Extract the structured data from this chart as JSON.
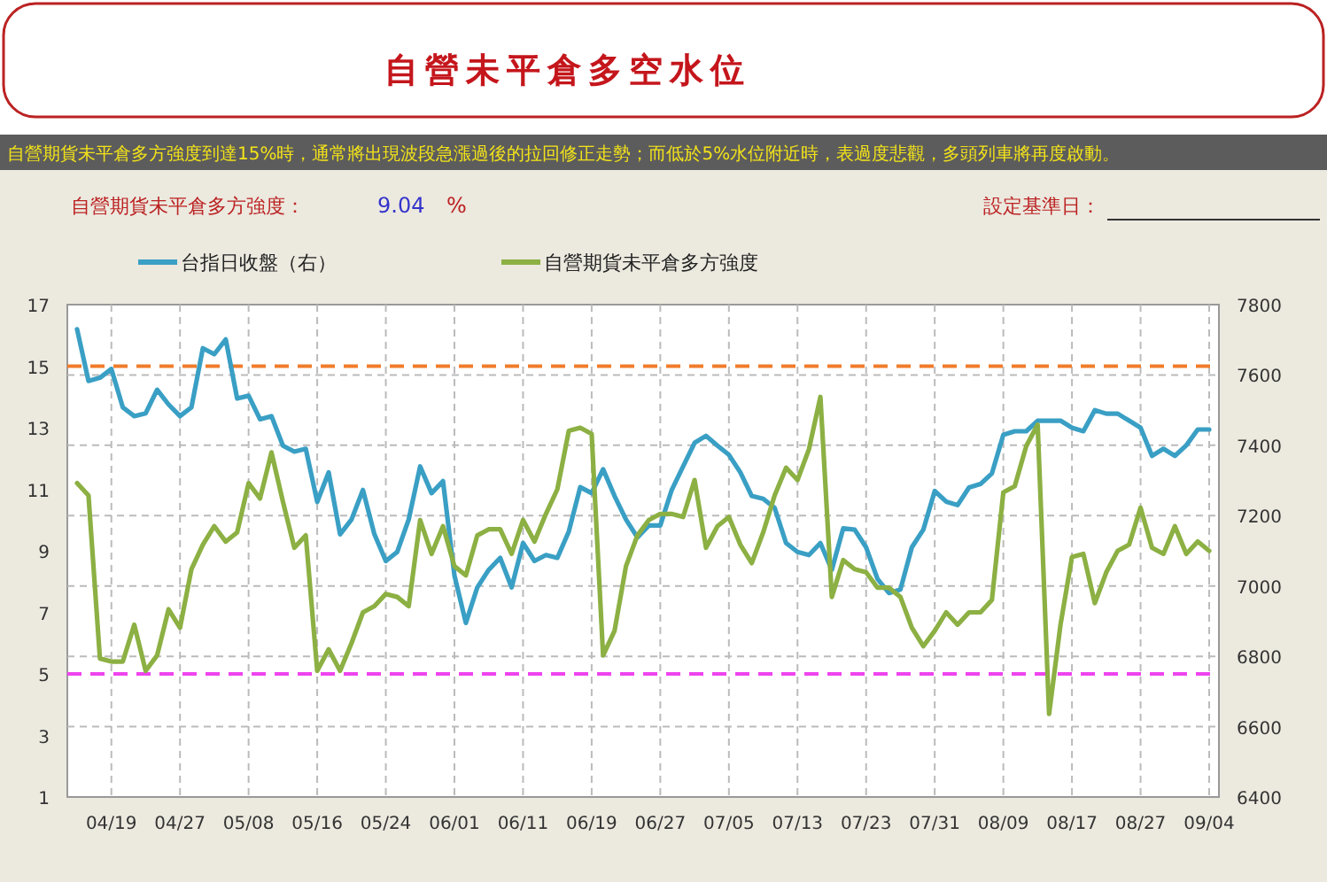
{
  "chart_data": {
    "type": "line",
    "title": "自營未平倉多空水位",
    "annotations": [
      "自營期貨未平倉多方強度到達15%時，通常將出現波段急漲過後的拉回修正走勢；而低於5%水位附近時，表過度悲觀，多頭列車將再度啟動。",
      "自營期貨未平倉多方強度：",
      "9.04",
      "%",
      "設定基準日："
    ],
    "categories": [
      null,
      null,
      null,
      "04/19",
      null,
      null,
      null,
      null,
      null,
      "04/27",
      null,
      null,
      null,
      null,
      null,
      "05/08",
      null,
      null,
      null,
      null,
      null,
      "05/16",
      null,
      null,
      null,
      null,
      null,
      "05/24",
      null,
      null,
      null,
      null,
      null,
      "06/01",
      null,
      null,
      null,
      null,
      null,
      "06/11",
      null,
      null,
      null,
      null,
      null,
      "06/19",
      null,
      null,
      null,
      null,
      null,
      "06/27",
      null,
      null,
      null,
      null,
      null,
      "07/05",
      null,
      null,
      null,
      null,
      null,
      "07/13",
      null,
      null,
      null,
      null,
      null,
      "07/23",
      null,
      null,
      null,
      null,
      null,
      "07/31",
      null,
      null,
      null,
      null,
      null,
      "08/09",
      null,
      null,
      null,
      null,
      null,
      "08/17",
      null,
      null,
      null,
      null,
      null,
      "08/27",
      null,
      null,
      null,
      null,
      null,
      "09/04"
    ],
    "series": [
      {
        "name": "台指日收盤（右）",
        "color": "#3a9fc4",
        "axis": "y2",
        "values": [
          7730,
          7583,
          7592,
          7617,
          7508,
          7483,
          7491,
          7558,
          7516,
          7483,
          7508,
          7676,
          7659,
          7701,
          7533,
          7541,
          7474,
          7483,
          7399,
          7382,
          7390,
          7239,
          7323,
          7147,
          7189,
          7273,
          7147,
          7071,
          7097,
          7189,
          7340,
          7264,
          7298,
          7030,
          6895,
          6996,
          7046,
          7080,
          6996,
          7122,
          7071,
          7088,
          7080,
          7155,
          7281,
          7264,
          7332,
          7256,
          7189,
          7138,
          7172,
          7172,
          7273,
          7340,
          7407,
          7427,
          7399,
          7373,
          7323,
          7256,
          7248,
          7222,
          7122,
          7097,
          7088,
          7122,
          7046,
          7164,
          7160,
          7110,
          7020,
          6980,
          6990,
          7110,
          7160,
          7270,
          7240,
          7230,
          7280,
          7290,
          7320,
          7430,
          7440,
          7440,
          7470,
          7470,
          7470,
          7450,
          7440,
          7500,
          7490,
          7490,
          7470,
          7450,
          7370,
          7390,
          7370,
          7400,
          7445,
          7445
        ]
      },
      {
        "name": "自營期貨未平倉多方強度",
        "color": "#8cb043",
        "values": [
          11.2,
          10.8,
          5.5,
          5.4,
          5.4,
          6.6,
          5.1,
          5.6,
          7.1,
          6.5,
          8.4,
          9.2,
          9.8,
          9.3,
          9.6,
          11.2,
          10.7,
          12.2,
          10.6,
          9.1,
          9.5,
          5.1,
          5.8,
          5.1,
          6.0,
          7.0,
          7.2,
          7.6,
          7.5,
          7.2,
          10.0,
          8.9,
          9.8,
          8.5,
          8.2,
          9.5,
          9.7,
          9.7,
          8.9,
          10.0,
          9.3,
          10.2,
          11.0,
          12.9,
          13.0,
          12.8,
          5.6,
          6.4,
          8.5,
          9.5,
          10.0,
          10.2,
          10.2,
          10.1,
          11.3,
          9.1,
          9.8,
          10.1,
          9.2,
          8.6,
          9.6,
          10.8,
          11.7,
          11.3,
          12.3,
          14.0,
          7.5,
          8.7,
          8.4,
          8.3,
          7.8,
          7.8,
          7.5,
          6.5,
          5.9,
          6.4,
          7.0,
          6.6,
          7.0,
          7.0,
          7.4,
          10.9,
          11.1,
          12.4,
          13.1,
          3.7,
          6.6,
          8.8,
          8.9,
          7.3,
          8.3,
          9.0,
          9.2,
          10.4,
          9.1,
          8.9,
          9.8,
          8.9,
          9.3,
          9.0
        ]
      }
    ],
    "ylim": [
      1,
      17
    ],
    "yticks": [
      1,
      3,
      5,
      7,
      9,
      11,
      13,
      15,
      17
    ],
    "y2lim": [
      6400,
      7800
    ],
    "y2ticks": [
      6400,
      6600,
      6800,
      7000,
      7200,
      7400,
      7600,
      7800
    ],
    "ref_lines": [
      {
        "axis": "y",
        "value": 15,
        "color": "#f07c2a",
        "line_style": "dashed"
      },
      {
        "axis": "y",
        "value": 5,
        "color": "#ee44ee",
        "line_style": "dashed"
      }
    ],
    "grid": true,
    "legend": "top left",
    "line_style": "solid",
    "marker": "none"
  }
}
